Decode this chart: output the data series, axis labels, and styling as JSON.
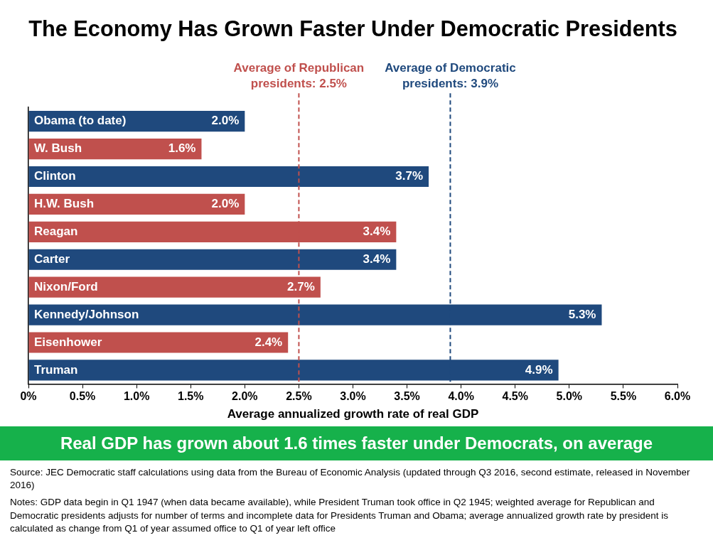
{
  "chart_data": {
    "type": "bar",
    "orientation": "horizontal",
    "title": "The Economy Has Grown Faster Under Democratic Presidents",
    "xlabel": "Average annualized growth rate of real GDP",
    "categories": [
      "Obama (to date)",
      "W. Bush",
      "Clinton",
      "H.W. Bush",
      "Reagan",
      "Carter",
      "Nixon/Ford",
      "Kennedy/Johnson",
      "Eisenhower",
      "Truman"
    ],
    "values": [
      2.0,
      1.6,
      3.7,
      2.0,
      3.4,
      3.4,
      2.7,
      5.3,
      2.4,
      4.9
    ],
    "colors": [
      "#1f497d",
      "#c0504d",
      "#1f497d",
      "#c0504d",
      "#c0504d",
      "#1f497d",
      "#c0504d",
      "#1f497d",
      "#c0504d",
      "#1f497d"
    ],
    "value_labels": [
      "2.0%",
      "1.6%",
      "3.7%",
      "2.0%",
      "3.4%",
      "3.4%",
      "2.7%",
      "5.3%",
      "2.4%",
      "4.9%"
    ],
    "xlim": [
      0,
      6
    ],
    "xticks": [
      {
        "value": 0,
        "label": "0%"
      },
      {
        "value": 0.5,
        "label": "0.5%"
      },
      {
        "value": 1,
        "label": "1.0%"
      },
      {
        "value": 1.5,
        "label": "1.5%"
      },
      {
        "value": 2,
        "label": "2.0%"
      },
      {
        "value": 2.5,
        "label": "2.5%"
      },
      {
        "value": 3,
        "label": "3.0%"
      },
      {
        "value": 3.5,
        "label": "3.5%"
      },
      {
        "value": 4,
        "label": "4.0%"
      },
      {
        "value": 4.5,
        "label": "4.5%"
      },
      {
        "value": 5,
        "label": "5.0%"
      },
      {
        "value": 5.5,
        "label": "5.5%"
      },
      {
        "value": 6,
        "label": "6.0%"
      }
    ],
    "ref_lines": [
      {
        "axis": "x",
        "value": 2.5,
        "label": "Average of Republican presidents: 2.5%",
        "color": "#c0504d",
        "line_style": "dashed"
      },
      {
        "axis": "x",
        "value": 3.9,
        "label": "Average of Democratic presidents: 3.9%",
        "color": "#1f497d",
        "line_style": "dashed"
      }
    ],
    "annotations": [
      "Real GDP has grown about 1.6 times faster under Democrats, on average",
      "Source: JEC Democratic staff calculations using data from the Bureau of Economic Analysis (updated through Q3 2016, second estimate, released in November 2016)",
      "Notes: GDP data begin in Q1 1947 (when data became available), while President Truman took office in Q2 1945; weighted average for Republican and Democratic presidents adjusts for number of terms and incomplete data for Presidents Truman and Obama; average annualized growth rate by president is calculated as change from Q1 of year assumed office to Q1 of year left office"
    ],
    "grid": false,
    "legend": false
  }
}
